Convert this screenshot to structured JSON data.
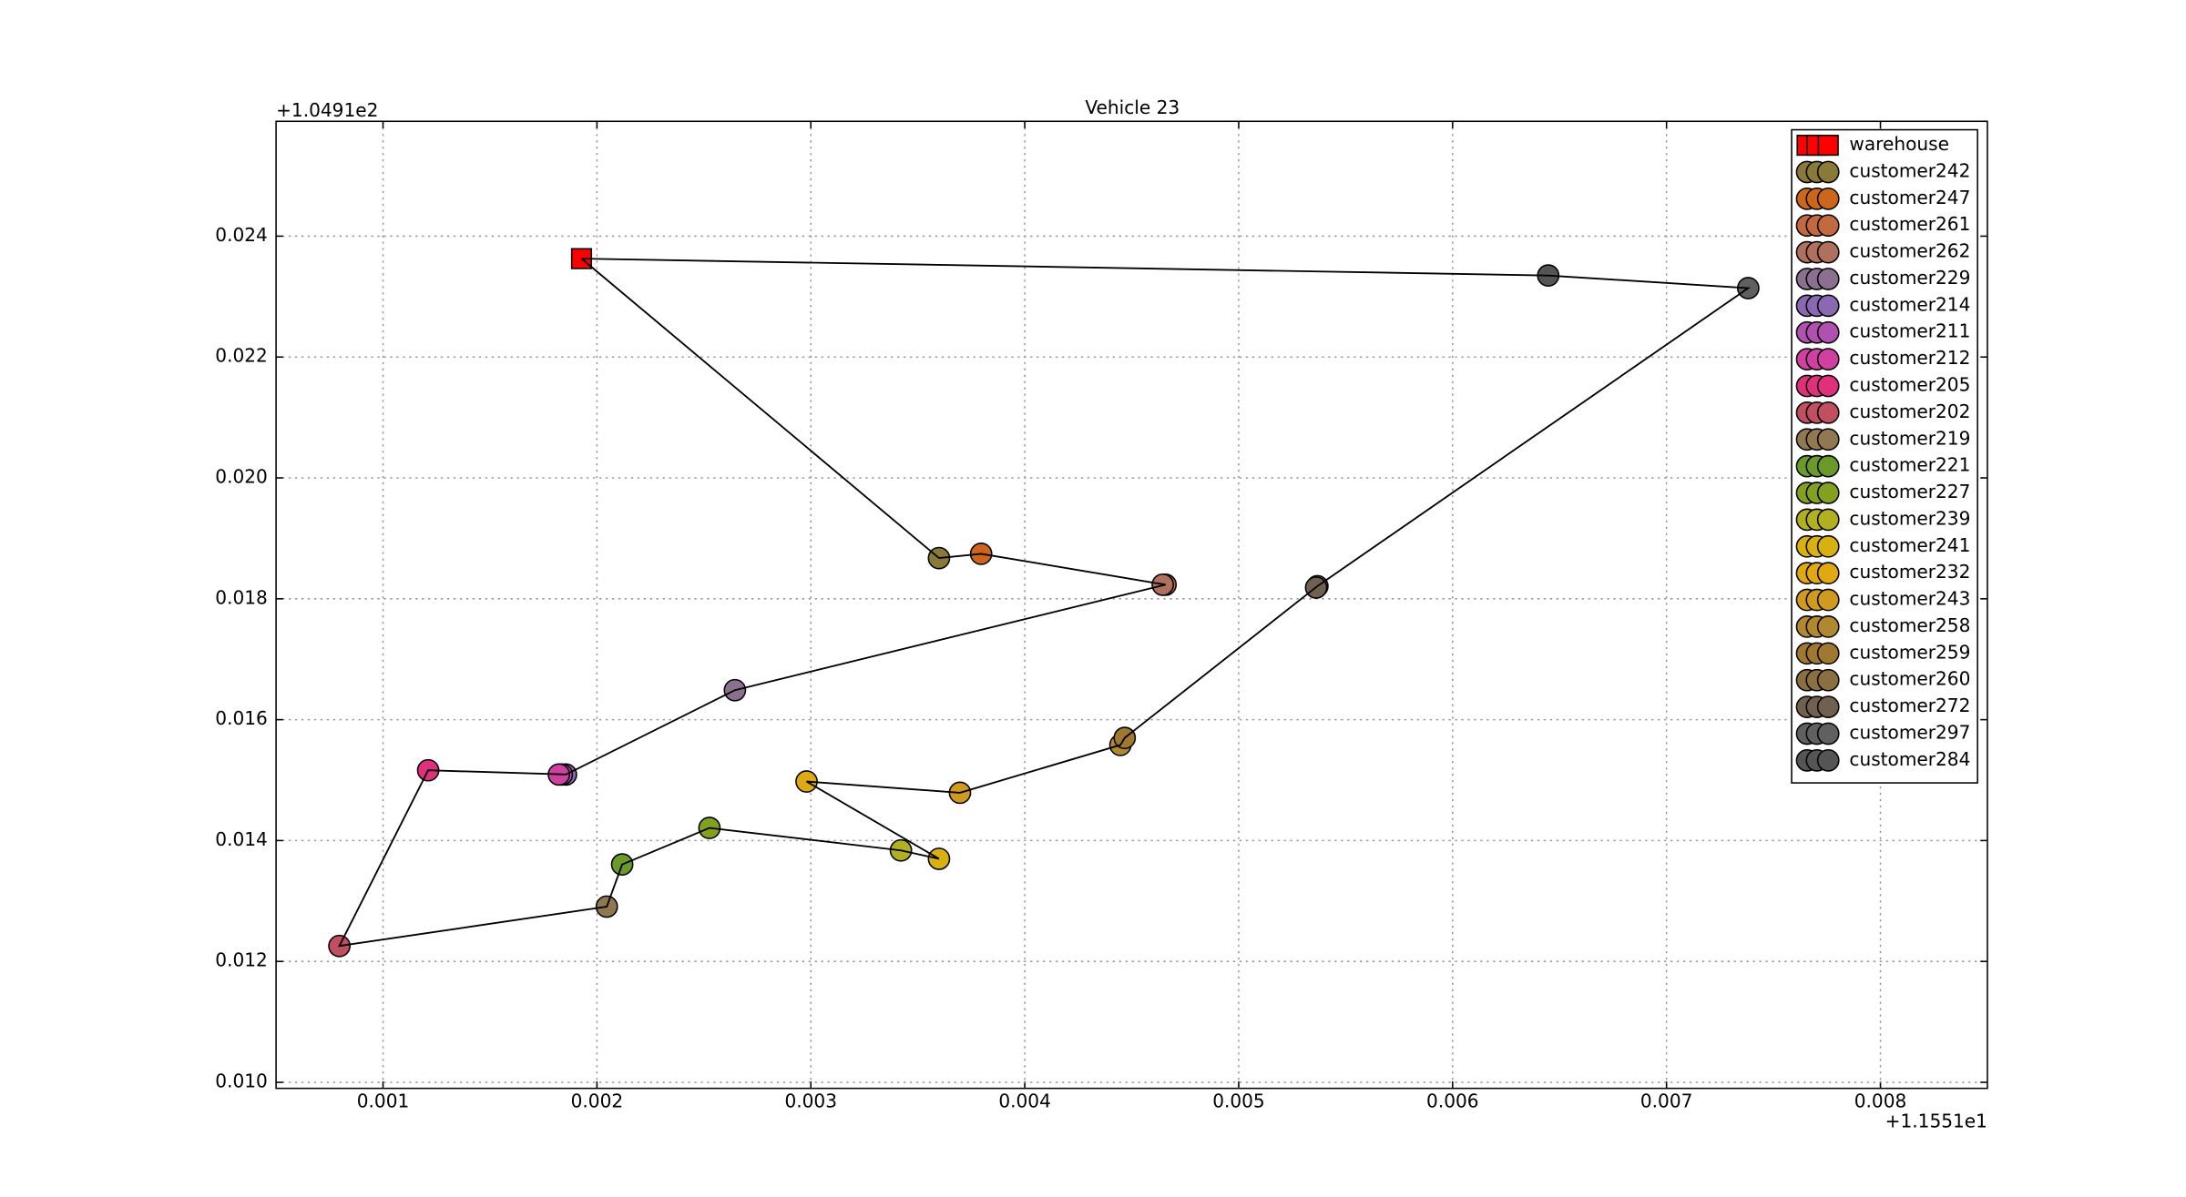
{
  "chart_data": {
    "type": "scatter",
    "title": "Vehicle 23",
    "x_offset_label": "+1.1551e1",
    "y_offset_label": "+1.0491e2",
    "xlim": [
      0.0005,
      0.0085
    ],
    "ylim": [
      0.0099,
      0.0259
    ],
    "xticks": [
      0.001,
      0.002,
      0.003,
      0.004,
      0.005,
      0.006,
      0.007,
      0.008
    ],
    "yticks": [
      {
        "value": 0.01,
        "label": "0.010"
      },
      0.012,
      0.014,
      0.016,
      0.018,
      {
        "value": 0.02,
        "label": "0.020"
      },
      0.022,
      0.024
    ],
    "grid": true,
    "legend": "upper right",
    "series": [
      {
        "name": "warehouse",
        "color": "#ff0000",
        "marker": "square",
        "x": [
          0.001928
        ],
        "y": [
          0.023628
        ]
      },
      {
        "name": "customer242",
        "color": "#8a7a38",
        "marker": "circle",
        "x": [
          0.003599
        ],
        "y": [
          0.018674
        ]
      },
      {
        "name": "customer247",
        "color": "#cd661d",
        "marker": "circle",
        "x": [
          0.003796
        ],
        "y": [
          0.018744
        ]
      },
      {
        "name": "customer261",
        "color": "#c2693f",
        "marker": "circle",
        "x": [
          0.004658
        ],
        "y": [
          0.018233
        ]
      },
      {
        "name": "customer262",
        "color": "#b0705e",
        "marker": "circle",
        "x": [
          0.004645
        ],
        "y": [
          0.018233
        ]
      },
      {
        "name": "customer229",
        "color": "#8b7090",
        "marker": "circle",
        "x": [
          0.002645
        ],
        "y": [
          0.016488
        ]
      },
      {
        "name": "customer214",
        "color": "#8a68b2",
        "marker": "circle",
        "x": [
          0.001855
        ],
        "y": [
          0.015093
        ]
      },
      {
        "name": "customer211",
        "color": "#b050b0",
        "marker": "circle",
        "x": [
          0.001836
        ],
        "y": [
          0.015093
        ]
      },
      {
        "name": "customer212",
        "color": "#d040a0",
        "marker": "circle",
        "x": [
          0.001822
        ],
        "y": [
          0.015093
        ]
      },
      {
        "name": "customer205",
        "color": "#e0307c",
        "marker": "circle",
        "x": [
          0.001211
        ],
        "y": [
          0.015163
        ]
      },
      {
        "name": "customer202",
        "color": "#c05060",
        "marker": "circle",
        "x": [
          0.000796
        ],
        "y": [
          0.012256
        ]
      },
      {
        "name": "customer219",
        "color": "#907850",
        "marker": "circle",
        "x": [
          0.002046
        ],
        "y": [
          0.012907
        ]
      },
      {
        "name": "customer221",
        "color": "#6a9a2a",
        "marker": "circle",
        "x": [
          0.002118
        ],
        "y": [
          0.013605
        ]
      },
      {
        "name": "customer227",
        "color": "#84a020",
        "marker": "circle",
        "x": [
          0.002526
        ],
        "y": [
          0.014209
        ]
      },
      {
        "name": "customer239",
        "color": "#b0b020",
        "marker": "circle",
        "x": [
          0.003421
        ],
        "y": [
          0.013837
        ]
      },
      {
        "name": "customer241",
        "color": "#d8b010",
        "marker": "circle",
        "x": [
          0.003599
        ],
        "y": [
          0.013698
        ]
      },
      {
        "name": "customer232",
        "color": "#e0a812",
        "marker": "circle",
        "x": [
          0.00298
        ],
        "y": [
          0.014977
        ]
      },
      {
        "name": "customer243",
        "color": "#d09a20",
        "marker": "circle",
        "x": [
          0.003697
        ],
        "y": [
          0.014791
        ]
      },
      {
        "name": "customer258",
        "color": "#b08830",
        "marker": "circle",
        "x": [
          0.004447
        ],
        "y": [
          0.015581
        ]
      },
      {
        "name": "customer259",
        "color": "#a07830",
        "marker": "circle",
        "x": [
          0.004467
        ],
        "y": [
          0.015698
        ]
      },
      {
        "name": "customer260",
        "color": "#8a7040",
        "marker": "circle",
        "x": [
          0.005368
        ],
        "y": [
          0.018209
        ]
      },
      {
        "name": "customer272",
        "color": "#706050",
        "marker": "circle",
        "x": [
          0.005362
        ],
        "y": [
          0.018186
        ]
      },
      {
        "name": "customer297",
        "color": "#606060",
        "marker": "circle",
        "x": [
          0.007382
        ],
        "y": [
          0.02314
        ]
      },
      {
        "name": "customer284",
        "color": "#555555",
        "marker": "circle",
        "x": [
          0.006447
        ],
        "y": [
          0.023349
        ]
      }
    ],
    "route": {
      "color": "#000000",
      "x": [
        0.001928,
        0.003599,
        0.003796,
        0.004658,
        0.002645,
        0.001855,
        0.001211,
        0.000796,
        0.002046,
        0.002118,
        0.002526,
        0.003421,
        0.003599,
        0.00298,
        0.003697,
        0.004447,
        0.004467,
        0.005368,
        0.007382,
        0.006447,
        0.001928
      ],
      "y": [
        0.023628,
        0.018674,
        0.018744,
        0.018233,
        0.016488,
        0.015093,
        0.015163,
        0.012256,
        0.012907,
        0.013605,
        0.014209,
        0.013837,
        0.013698,
        0.014977,
        0.014791,
        0.015581,
        0.015698,
        0.018209,
        0.02314,
        0.023349,
        0.023628
      ]
    }
  }
}
